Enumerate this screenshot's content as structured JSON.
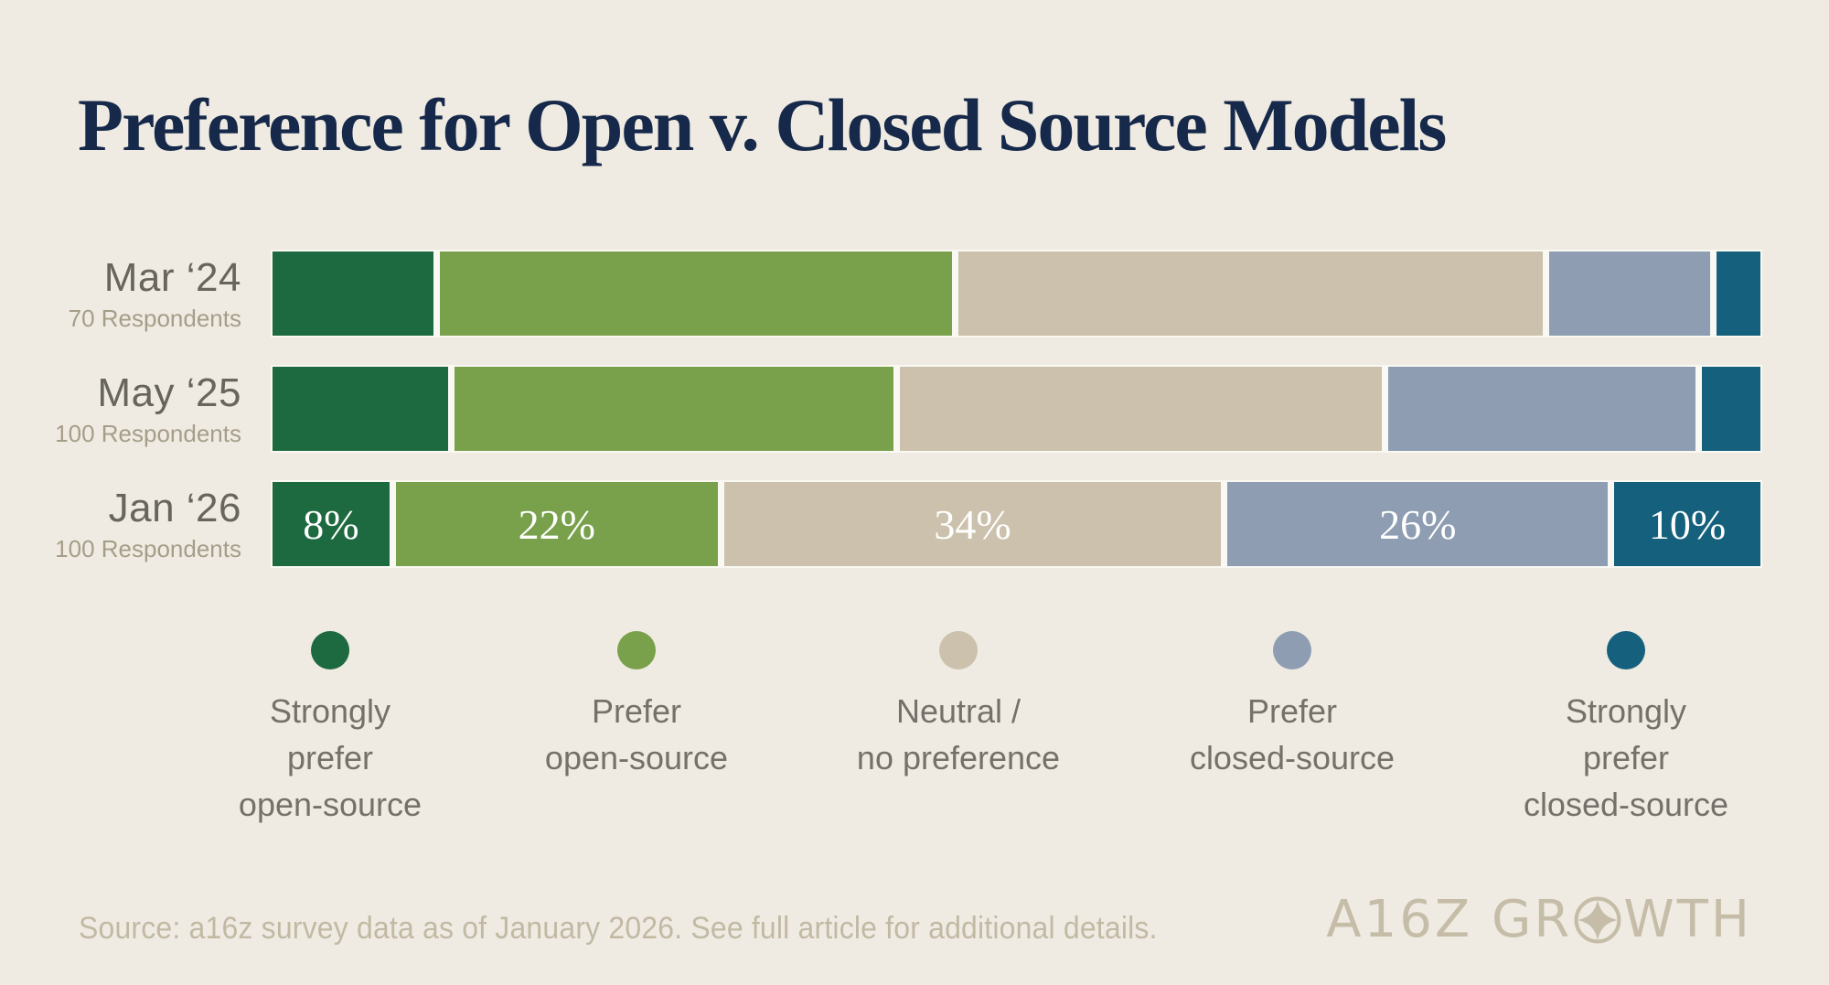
{
  "title": "Preference for Open v. Closed Source Models",
  "chart_data": {
    "type": "bar",
    "orientation": "horizontal",
    "stacked": true,
    "unit": "percent",
    "xlim": [
      0,
      100
    ],
    "grid": false,
    "legend_position": "bottom",
    "categories": [
      "Mar ‘24",
      "May ‘25",
      "Jan ‘26"
    ],
    "category_sublabels": [
      "70 Respondents",
      "100 Respondents",
      "100 Respondents"
    ],
    "series": [
      {
        "name": "Strongly prefer open-source",
        "color": "#1e6a40",
        "values": [
          11,
          12,
          8
        ]
      },
      {
        "name": "Prefer open-source",
        "color": "#79a14c",
        "values": [
          35,
          30,
          22
        ]
      },
      {
        "name": "Neutral / no preference",
        "color": "#cbc1ac",
        "values": [
          40,
          33,
          34
        ]
      },
      {
        "name": "Prefer closed-source",
        "color": "#8e9db2",
        "values": [
          11,
          21,
          26
        ]
      },
      {
        "name": "Strongly prefer closed-source",
        "color": "#15617d",
        "values": [
          3,
          4,
          10
        ]
      }
    ],
    "value_labels": {
      "row": "Jan ‘26",
      "labels": [
        "8%",
        "22%",
        "34%",
        "26%",
        "10%"
      ]
    }
  },
  "legend": {
    "items": [
      {
        "lines": [
          "Strongly",
          "prefer",
          "open-source"
        ]
      },
      {
        "lines": [
          "Prefer",
          "open-source"
        ]
      },
      {
        "lines": [
          "Neutral /",
          "no preference"
        ]
      },
      {
        "lines": [
          "Prefer",
          "closed-source"
        ]
      },
      {
        "lines": [
          "Strongly",
          "prefer",
          "closed-source"
        ]
      }
    ]
  },
  "source_note": "Source: a16z survey data as of January 2026. See full article for additional details.",
  "brand": {
    "name": "A16Z GROWTH",
    "pre": "A16Z GR",
    "post": "WTH"
  },
  "colors": {
    "background": "#efebe2",
    "title": "#16294a",
    "divider": "#faf8f2",
    "row_label": "#67655d",
    "row_sublabel": "#a69d89",
    "legend_text": "#74706a",
    "source_text": "#c2b9a4",
    "logo": "#c6bda8",
    "value_label_text": "#ffffff"
  }
}
